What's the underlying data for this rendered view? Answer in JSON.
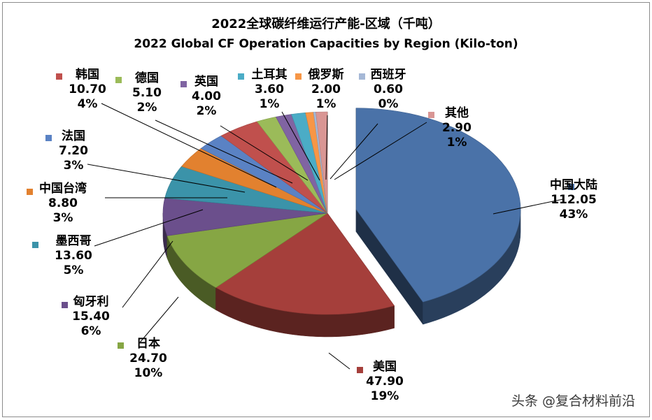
{
  "chart_data": {
    "type": "pie",
    "title": "2022全球碳纤维运行产能-区域（千吨）",
    "subtitle": "2022 Global CF Operation Capacities by Region (Kilo-ton)",
    "slices": [
      {
        "name": "中国大陆",
        "value": 112.05,
        "pct": "43%",
        "color": "#4a72a8",
        "exploded": true
      },
      {
        "name": "美国",
        "value": 47.9,
        "pct": "19%",
        "color": "#a53f3b"
      },
      {
        "name": "日本",
        "value": 24.7,
        "pct": "10%",
        "color": "#86a644"
      },
      {
        "name": "匈牙利",
        "value": 15.4,
        "pct": "6%",
        "color": "#6b4f8c"
      },
      {
        "name": "墨西哥",
        "value": 13.6,
        "pct": "5%",
        "color": "#3b93a9"
      },
      {
        "name": "中国台湾",
        "value": 8.8,
        "pct": "3%",
        "color": "#e2812f"
      },
      {
        "name": "法国",
        "value": 7.2,
        "pct": "3%",
        "color": "#5a82c4"
      },
      {
        "name": "韩国",
        "value": 10.7,
        "pct": "4%",
        "color": "#c0504d"
      },
      {
        "name": "德国",
        "value": 5.1,
        "pct": "2%",
        "color": "#9bbb59"
      },
      {
        "name": "英国",
        "value": 4.0,
        "pct": "2%",
        "color": "#8064a2"
      },
      {
        "name": "土耳其",
        "value": 3.6,
        "pct": "1%",
        "color": "#4bacc6"
      },
      {
        "name": "俄罗斯",
        "value": 2.0,
        "pct": "1%",
        "color": "#f79646"
      },
      {
        "name": "西班牙",
        "value": 0.6,
        "pct": "0%",
        "color": "#a5b8d6"
      },
      {
        "name": "其他",
        "value": 2.9,
        "pct": "1%",
        "color": "#d99694"
      }
    ],
    "value_format": "fixed2",
    "legend": "none",
    "style": "3d-exploded-pie"
  },
  "watermark": "头条 @复合材料前沿"
}
